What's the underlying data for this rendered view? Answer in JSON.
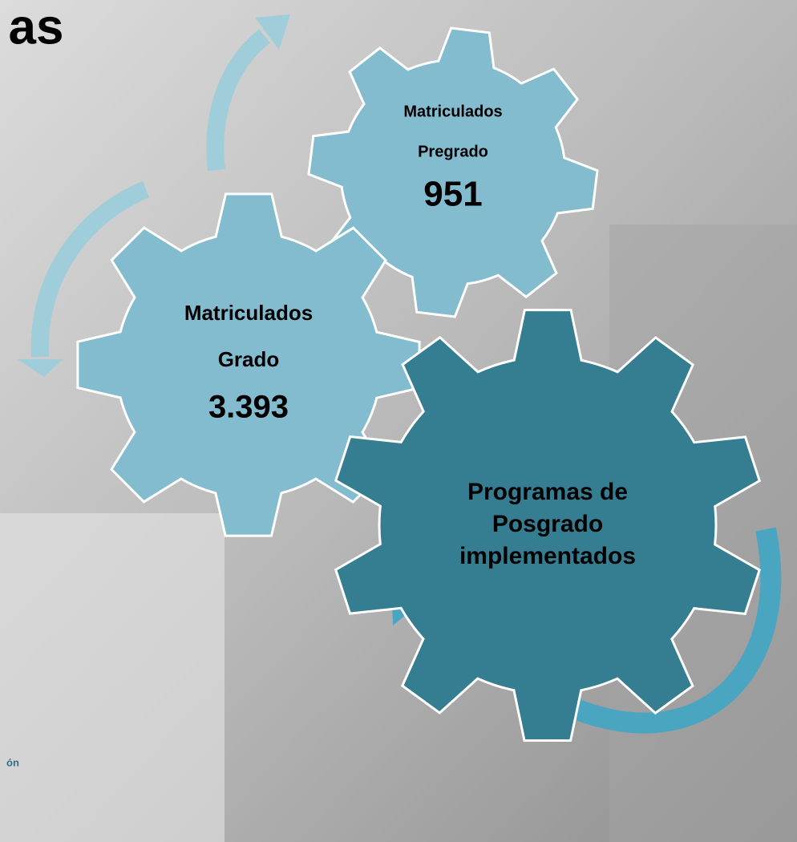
{
  "header": {
    "title": "as"
  },
  "gears": [
    {
      "lines": [
        "Matriculados",
        "Pregrado"
      ],
      "value": "951"
    },
    {
      "lines": [
        "Matriculados",
        "Grado"
      ],
      "value": "3.393"
    },
    {
      "lines": [
        "Programas de",
        "Posgrado",
        "implementados"
      ]
    }
  ],
  "footer": {
    "text": "ón"
  }
}
